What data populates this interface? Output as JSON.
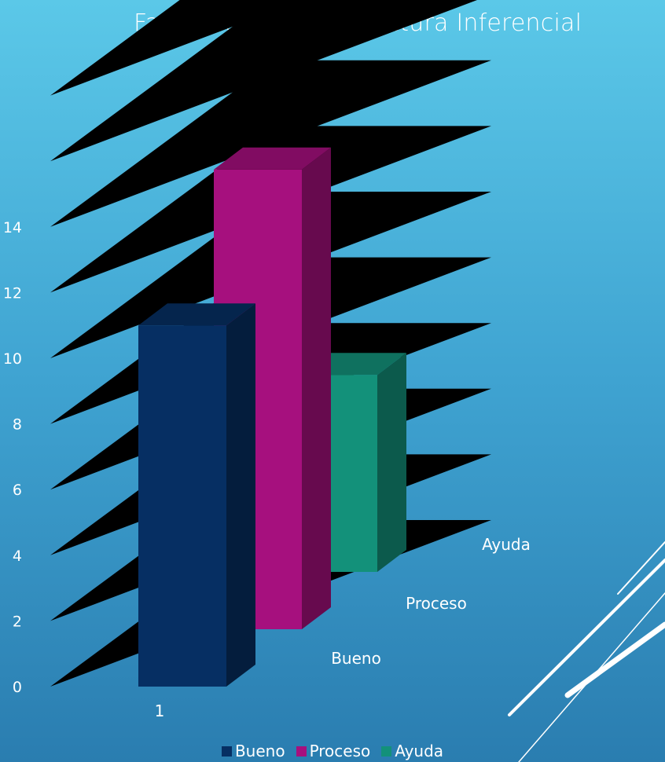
{
  "chart_data": {
    "type": "bar",
    "title": "Fase final Nivel de Lectura Inferencial",
    "categories": [
      "1"
    ],
    "series": [
      {
        "name": "Bueno",
        "values": [
          11
        ],
        "color": "#062f63"
      },
      {
        "name": "Proceso",
        "values": [
          14
        ],
        "color": "#a6107e"
      },
      {
        "name": "Ayuda",
        "values": [
          6
        ],
        "color": "#13917a"
      }
    ],
    "depth_labels": [
      "Bueno",
      "Proceso",
      "Ayuda"
    ],
    "y_ticks": [
      "0",
      "2",
      "4",
      "6",
      "8",
      "10",
      "12",
      "14"
    ],
    "ylim": [
      0,
      18
    ],
    "grid": true,
    "legend_position": "bottom",
    "three_d": true
  },
  "decoration": {
    "accent_lines_color": "#ffffff"
  }
}
